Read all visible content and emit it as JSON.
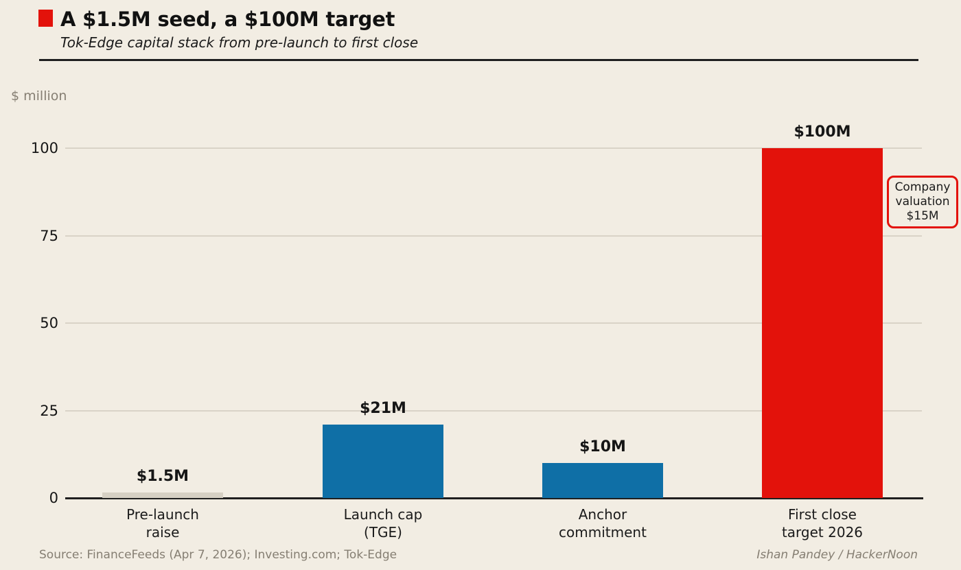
{
  "page": {
    "title": "A $1.5M seed, a $100M target",
    "subtitle": "Tok-Edge capital stack from pre-launch to first close"
  },
  "chart_data": {
    "type": "bar",
    "title": "A $1.5M seed, a $100M target",
    "subtitle": "Tok-Edge capital stack from pre-launch to first close",
    "unit_label": "$ million",
    "categories": [
      [
        "Pre-launch",
        "raise"
      ],
      [
        "Launch cap",
        "(TGE)"
      ],
      [
        "Anchor",
        "commitment"
      ],
      [
        "First close",
        "target 2026"
      ]
    ],
    "values": [
      1.5,
      21,
      10,
      100
    ],
    "value_labels": [
      "$1.5M",
      "$21M",
      "$10M",
      "$100M"
    ],
    "bar_colors": [
      "#d6d0c4",
      "#0f6fa6",
      "#0f6fa6",
      "#e3120b"
    ],
    "yticks": [
      0,
      25,
      50,
      75,
      100
    ],
    "ylim": [
      0,
      100
    ],
    "grid": true,
    "legend": null,
    "annotation": {
      "lines": [
        "Company",
        "valuation",
        "$15M"
      ],
      "border_color": "#e3120b"
    }
  },
  "footer": {
    "source": "Source: FinanceFeeds (Apr 7, 2026); Investing.com; Tok-Edge",
    "credit": "Ishan Pandey / HackerNoon"
  },
  "colors": {
    "background": "#f2ede3",
    "accent_red": "#e3120b",
    "bar_blue": "#0f6fa6",
    "bar_gray": "#d6d0c4",
    "text_dark": "#161616",
    "text_muted": "#857e72",
    "gridline": "#d9d3c7"
  }
}
